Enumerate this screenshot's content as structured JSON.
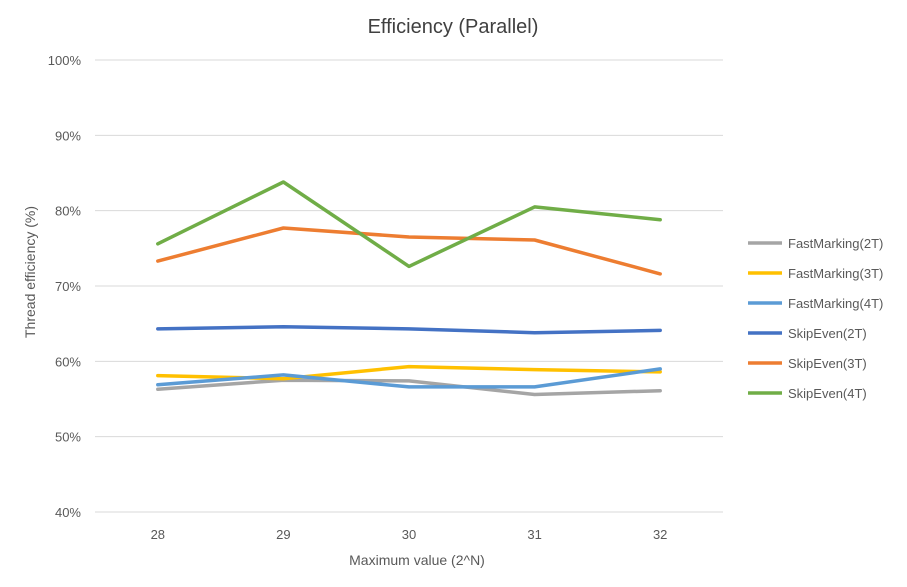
{
  "chart_data": {
    "type": "line",
    "title": "Efficiency (Parallel)",
    "xlabel": "Maximum value (2^N)",
    "ylabel": "Thread efficiency (%)",
    "categories": [
      "28",
      "29",
      "30",
      "31",
      "32"
    ],
    "ylim": [
      40,
      100
    ],
    "yticks": [
      40,
      50,
      60,
      70,
      80,
      90,
      100
    ],
    "ytick_labels": [
      "40%",
      "50%",
      "60%",
      "70%",
      "80%",
      "90%",
      "100%"
    ],
    "grid": true,
    "legend_position": "right",
    "series": [
      {
        "name": "FastMarking(2T)",
        "color": "#a5a5a5",
        "values": [
          56.3,
          57.5,
          57.4,
          55.6,
          56.1
        ]
      },
      {
        "name": "FastMarking(3T)",
        "color": "#ffc000",
        "values": [
          58.1,
          57.7,
          59.3,
          58.9,
          58.6
        ]
      },
      {
        "name": "FastMarking(4T)",
        "color": "#5b9bd5",
        "values": [
          56.9,
          58.2,
          56.6,
          56.6,
          59.0
        ]
      },
      {
        "name": "SkipEven(2T)",
        "color": "#4472c4",
        "values": [
          64.3,
          64.6,
          64.3,
          63.8,
          64.1
        ]
      },
      {
        "name": "SkipEven(3T)",
        "color": "#ed7d31",
        "values": [
          73.3,
          77.7,
          76.5,
          76.1,
          71.6
        ]
      },
      {
        "name": "SkipEven(4T)",
        "color": "#70ad47",
        "values": [
          75.6,
          83.8,
          72.6,
          80.5,
          78.8
        ]
      }
    ]
  }
}
